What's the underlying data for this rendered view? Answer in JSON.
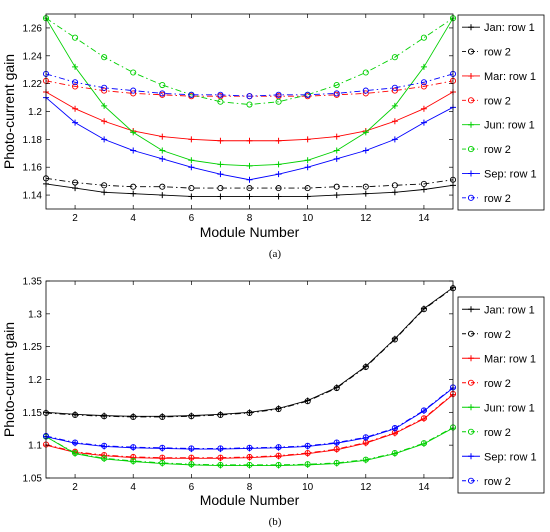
{
  "chart_data": [
    {
      "type": "line",
      "panel_label": "(a)",
      "xlabel": "Module Number",
      "ylabel": "Photo-current gain",
      "xlim": [
        1,
        15
      ],
      "ylim": [
        1.13,
        1.27
      ],
      "xticks": [
        2,
        4,
        6,
        8,
        10,
        12,
        14
      ],
      "yticks": [
        1.14,
        1.16,
        1.18,
        1.2,
        1.22,
        1.24,
        1.26
      ],
      "ytick_labels": [
        "1.14",
        "1.16",
        "1.18",
        "1.2",
        "1.22",
        "1.24",
        "1.26"
      ],
      "grid": false,
      "legend_position": "outside-right",
      "x": [
        1,
        2,
        3,
        4,
        5,
        6,
        7,
        8,
        9,
        10,
        11,
        12,
        13,
        14,
        15
      ],
      "series": [
        {
          "name": "Jan: row 1",
          "color": "#000000",
          "line": "solid",
          "marker": "plus",
          "values": [
            1.148,
            1.145,
            1.142,
            1.141,
            1.14,
            1.139,
            1.139,
            1.139,
            1.139,
            1.139,
            1.14,
            1.141,
            1.142,
            1.144,
            1.147
          ]
        },
        {
          "name": "row 2",
          "color": "#000000",
          "line": "dashdot",
          "marker": "circle",
          "values": [
            1.152,
            1.149,
            1.147,
            1.146,
            1.146,
            1.145,
            1.145,
            1.145,
            1.145,
            1.145,
            1.146,
            1.146,
            1.147,
            1.148,
            1.151
          ]
        },
        {
          "name": "Mar: row 1",
          "color": "#ff0000",
          "line": "solid",
          "marker": "plus",
          "values": [
            1.214,
            1.202,
            1.193,
            1.186,
            1.182,
            1.18,
            1.179,
            1.179,
            1.179,
            1.18,
            1.182,
            1.186,
            1.193,
            1.202,
            1.214
          ]
        },
        {
          "name": "row 2",
          "color": "#ff0000",
          "line": "dashdot",
          "marker": "circle",
          "values": [
            1.222,
            1.218,
            1.215,
            1.213,
            1.212,
            1.211,
            1.211,
            1.211,
            1.211,
            1.211,
            1.212,
            1.213,
            1.215,
            1.218,
            1.222
          ]
        },
        {
          "name": "Jun: row 1",
          "color": "#00d000",
          "line": "solid",
          "marker": "plus",
          "values": [
            1.267,
            1.232,
            1.204,
            1.185,
            1.172,
            1.165,
            1.162,
            1.161,
            1.162,
            1.165,
            1.172,
            1.185,
            1.204,
            1.232,
            1.267
          ]
        },
        {
          "name": "row 2",
          "color": "#00d000",
          "line": "dashdot",
          "marker": "circle",
          "values": [
            1.267,
            1.253,
            1.239,
            1.228,
            1.219,
            1.212,
            1.207,
            1.205,
            1.207,
            1.212,
            1.219,
            1.228,
            1.239,
            1.253,
            1.267
          ]
        },
        {
          "name": "Sep: row 1",
          "color": "#0000ff",
          "line": "solid",
          "marker": "plus",
          "values": [
            1.21,
            1.192,
            1.18,
            1.172,
            1.166,
            1.16,
            1.155,
            1.151,
            1.155,
            1.16,
            1.166,
            1.172,
            1.18,
            1.192,
            1.203
          ]
        },
        {
          "name": "row 2",
          "color": "#0000ff",
          "line": "dashdot",
          "marker": "circle",
          "values": [
            1.227,
            1.221,
            1.217,
            1.215,
            1.213,
            1.212,
            1.212,
            1.211,
            1.212,
            1.212,
            1.213,
            1.215,
            1.217,
            1.221,
            1.227
          ]
        }
      ]
    },
    {
      "type": "line",
      "panel_label": "(b)",
      "xlabel": "Module Number",
      "ylabel": "Photo-current gain",
      "xlim": [
        1,
        15
      ],
      "ylim": [
        1.05,
        1.35
      ],
      "xticks": [
        2,
        4,
        6,
        8,
        10,
        12,
        14
      ],
      "yticks": [
        1.05,
        1.1,
        1.15,
        1.2,
        1.25,
        1.3,
        1.35
      ],
      "ytick_labels": [
        "1.05",
        "1.1",
        "1.15",
        "1.2",
        "1.25",
        "1.3",
        "1.35"
      ],
      "grid": false,
      "legend_position": "outside-right",
      "x": [
        1,
        2,
        3,
        4,
        5,
        6,
        7,
        8,
        9,
        10,
        11,
        12,
        13,
        14,
        15
      ],
      "series": [
        {
          "name": "Jan: row 1",
          "color": "#000000",
          "line": "solid",
          "marker": "plus",
          "values": [
            1.15,
            1.147,
            1.145,
            1.144,
            1.144,
            1.145,
            1.147,
            1.15,
            1.156,
            1.168,
            1.188,
            1.22,
            1.262,
            1.308,
            1.34
          ]
        },
        {
          "name": "row 2",
          "color": "#000000",
          "line": "dashdot",
          "marker": "circle",
          "values": [
            1.149,
            1.146,
            1.144,
            1.143,
            1.143,
            1.144,
            1.146,
            1.149,
            1.155,
            1.167,
            1.187,
            1.219,
            1.261,
            1.307,
            1.339
          ]
        },
        {
          "name": "Mar: row 1",
          "color": "#ff0000",
          "line": "solid",
          "marker": "plus",
          "values": [
            1.1,
            1.089,
            1.084,
            1.081,
            1.08,
            1.08,
            1.08,
            1.081,
            1.083,
            1.087,
            1.093,
            1.103,
            1.118,
            1.14,
            1.177
          ]
        },
        {
          "name": "row 2",
          "color": "#ff0000",
          "line": "dashdot",
          "marker": "circle",
          "values": [
            1.101,
            1.09,
            1.085,
            1.082,
            1.081,
            1.081,
            1.081,
            1.082,
            1.084,
            1.088,
            1.094,
            1.104,
            1.119,
            1.141,
            1.178
          ]
        },
        {
          "name": "Jun: row 1",
          "color": "#00d000",
          "line": "solid",
          "marker": "plus",
          "values": [
            1.113,
            1.087,
            1.079,
            1.075,
            1.072,
            1.07,
            1.069,
            1.069,
            1.069,
            1.07,
            1.072,
            1.077,
            1.087,
            1.102,
            1.126
          ]
        },
        {
          "name": "row 2",
          "color": "#00d000",
          "line": "dashdot",
          "marker": "circle",
          "values": [
            1.113,
            1.088,
            1.08,
            1.076,
            1.073,
            1.071,
            1.07,
            1.07,
            1.07,
            1.071,
            1.073,
            1.078,
            1.088,
            1.103,
            1.127
          ]
        },
        {
          "name": "Sep: row 1",
          "color": "#0000ff",
          "line": "solid",
          "marker": "plus",
          "values": [
            1.113,
            1.103,
            1.098,
            1.096,
            1.095,
            1.094,
            1.094,
            1.095,
            1.096,
            1.098,
            1.103,
            1.111,
            1.125,
            1.152,
            1.187
          ]
        },
        {
          "name": "row 2",
          "color": "#0000ff",
          "line": "dashdot",
          "marker": "circle",
          "values": [
            1.114,
            1.104,
            1.099,
            1.097,
            1.096,
            1.095,
            1.095,
            1.096,
            1.097,
            1.099,
            1.104,
            1.112,
            1.126,
            1.153,
            1.188
          ]
        }
      ]
    }
  ]
}
